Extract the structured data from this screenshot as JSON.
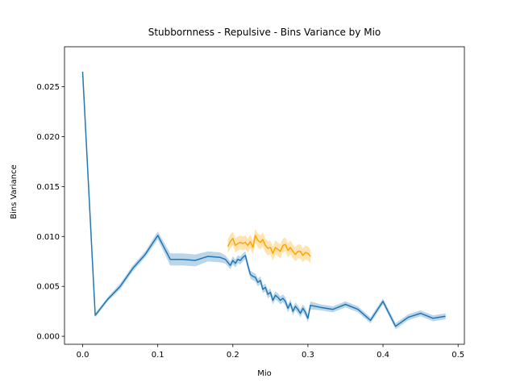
{
  "chart_data": {
    "type": "line",
    "title": "Stubbornness - Repulsive - Bins Variance by Mio",
    "x_label": "Mio",
    "y_label": "Bins Variance",
    "xlim": [
      -0.0242,
      0.5084
    ],
    "ylim": [
      -0.0008,
      0.029
    ],
    "xticks": [
      {
        "value": 0.0,
        "label": "0.0"
      },
      0.1,
      0.2,
      0.3,
      0.4,
      0.5
    ],
    "yticks": [
      {
        "value": 0.0,
        "label": "0.000"
      },
      {
        "value": 0.005,
        "label": "0.005"
      },
      {
        "value": 0.01,
        "label": "0.010"
      },
      {
        "value": 0.015,
        "label": "0.015"
      },
      {
        "value": 0.02,
        "label": "0.020"
      },
      {
        "value": 0.025,
        "label": "0.025"
      }
    ],
    "series": [
      {
        "color": "#1f77b4",
        "x": [
          0,
          0.0167,
          0.0333,
          0.05,
          0.0667,
          0.0833,
          0.1,
          0.1167,
          0.1333,
          0.15,
          0.1667,
          0.1833,
          0.19,
          0.1967,
          0.2,
          0.2033,
          0.2067,
          0.21,
          0.2133,
          0.2167,
          0.22,
          0.2233,
          0.2267,
          0.23,
          0.2333,
          0.2367,
          0.24,
          0.2433,
          0.2467,
          0.25,
          0.2533,
          0.2567,
          0.26,
          0.2633,
          0.2667,
          0.27,
          0.2733,
          0.2767,
          0.28,
          0.2833,
          0.2867,
          0.29,
          0.2933,
          0.2967,
          0.3,
          0.3033,
          0.3167,
          0.3333,
          0.35,
          0.3667,
          0.3833,
          0.4,
          0.4167,
          0.4333,
          0.45,
          0.4667,
          0.4833
        ],
        "values": [
          0.0265,
          0.0021,
          0.0037,
          0.005,
          0.0068,
          0.0082,
          0.0101,
          0.0077,
          0.0077,
          0.0076,
          0.008,
          0.0079,
          0.0077,
          0.0071,
          0.0076,
          0.0073,
          0.0077,
          0.0076,
          0.0079,
          0.0081,
          0.0071,
          0.0062,
          0.006,
          0.0059,
          0.0054,
          0.0056,
          0.0047,
          0.0049,
          0.0042,
          0.0044,
          0.0036,
          0.0041,
          0.0039,
          0.0036,
          0.0038,
          0.0035,
          0.0028,
          0.0033,
          0.0025,
          0.003,
          0.0027,
          0.0023,
          0.0028,
          0.0024,
          0.0018,
          0.0031,
          0.0029,
          0.0027,
          0.0032,
          0.0027,
          0.0016,
          0.0035,
          0.001,
          0.0019,
          0.0023,
          0.0018,
          0.002
        ],
        "errors": [
          0.0001,
          0.0002,
          0.0002,
          0.0003,
          0.0003,
          0.0003,
          0.0004,
          0.0006,
          0.0006,
          0.0006,
          0.0005,
          0.0005,
          0.0004,
          0.0004,
          0.0004,
          0.0004,
          0.0004,
          0.0004,
          0.0004,
          0.0004,
          0.0004,
          0.0004,
          0.0004,
          0.0004,
          0.0004,
          0.0004,
          0.0004,
          0.0004,
          0.0004,
          0.0004,
          0.0004,
          0.0004,
          0.0004,
          0.0004,
          0.0004,
          0.0004,
          0.0004,
          0.0004,
          0.0004,
          0.0004,
          0.0004,
          0.0004,
          0.0004,
          0.0004,
          0.0004,
          0.0004,
          0.0003,
          0.0003,
          0.0003,
          0.0003,
          0.0003,
          0.0003,
          0.0003,
          0.0003,
          0.0003,
          0.0003,
          0.0003
        ]
      },
      {
        "color": "#ffa500",
        "x": [
          0.1933,
          0.1967,
          0.2,
          0.2033,
          0.2067,
          0.21,
          0.2133,
          0.2167,
          0.22,
          0.2233,
          0.2267,
          0.23,
          0.2333,
          0.2367,
          0.24,
          0.2433,
          0.2467,
          0.25,
          0.2533,
          0.2567,
          0.26,
          0.2633,
          0.2667,
          0.27,
          0.2733,
          0.2767,
          0.28,
          0.2833,
          0.2867,
          0.29,
          0.2933,
          0.2967,
          0.3,
          0.3033
        ],
        "values": [
          0.009,
          0.0095,
          0.0098,
          0.0091,
          0.0093,
          0.0094,
          0.0093,
          0.0094,
          0.0091,
          0.0095,
          0.0089,
          0.0101,
          0.0096,
          0.0094,
          0.0097,
          0.0091,
          0.0088,
          0.0089,
          0.0083,
          0.0089,
          0.0087,
          0.0085,
          0.0091,
          0.0092,
          0.0086,
          0.0089,
          0.0085,
          0.0082,
          0.0085,
          0.0085,
          0.0081,
          0.0084,
          0.0083,
          0.008
        ],
        "errors": [
          0.0007,
          0.0007,
          0.0007,
          0.0007,
          0.0007,
          0.0007,
          0.0007,
          0.0007,
          0.0007,
          0.0007,
          0.0007,
          0.0007,
          0.0007,
          0.0007,
          0.0007,
          0.0007,
          0.0007,
          0.0007,
          0.0007,
          0.0007,
          0.0007,
          0.0007,
          0.0007,
          0.0007,
          0.0007,
          0.0007,
          0.0007,
          0.0007,
          0.0007,
          0.0007,
          0.0007,
          0.0007,
          0.0007,
          0.0007
        ]
      }
    ]
  }
}
